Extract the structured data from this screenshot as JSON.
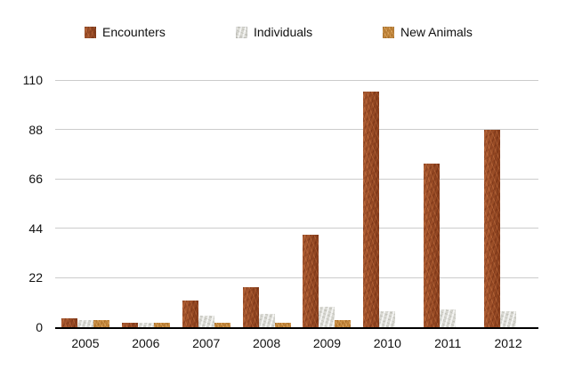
{
  "chart_data": {
    "type": "bar",
    "categories": [
      "2005",
      "2006",
      "2007",
      "2008",
      "2009",
      "2010",
      "2011",
      "2012"
    ],
    "series": [
      {
        "name": "Encounters",
        "color": "#9C4A23",
        "values": [
          4,
          2,
          12,
          18,
          41,
          105,
          73,
          88
        ]
      },
      {
        "name": "Individuals",
        "color": "#D9D9D3",
        "values": [
          3,
          2,
          5,
          6,
          9,
          7,
          8,
          7
        ]
      },
      {
        "name": "New Animals",
        "color": "#C78A3E",
        "values": [
          3,
          2,
          2,
          2,
          3,
          0,
          0,
          0
        ]
      }
    ],
    "ylim": [
      0,
      110
    ],
    "yticks": [
      0,
      22,
      44,
      66,
      88,
      110
    ],
    "grid": true,
    "legend_position": "top",
    "gridline_color": "#CCCCCC",
    "axis_color": "#000000",
    "text_color": "#111111",
    "background_color": "#FFFFFF"
  }
}
